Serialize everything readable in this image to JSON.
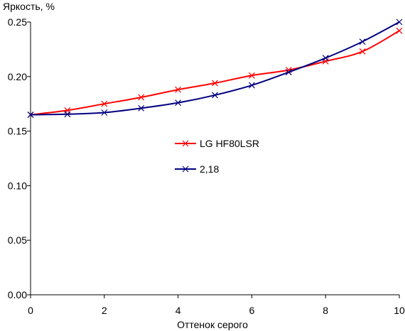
{
  "chart_data": {
    "type": "line",
    "ylabel": "Яркость, %",
    "xlabel": "Оттенок серого",
    "xlim": [
      0,
      10
    ],
    "ylim": [
      0,
      0.25
    ],
    "x_ticks": [
      "0",
      "2",
      "4",
      "6",
      "8",
      "10"
    ],
    "y_ticks": [
      "0.00",
      "0.05",
      "0.10",
      "0.15",
      "0.20",
      "0.25"
    ],
    "grid": false,
    "legend_position": "center",
    "x": [
      0,
      1,
      2,
      3,
      4,
      5,
      6,
      7,
      8,
      9,
      10
    ],
    "series": [
      {
        "name": "LG HF80LSR",
        "color": "#ff0000",
        "marker": "x",
        "values": [
          0.165,
          0.169,
          0.175,
          0.181,
          0.188,
          0.194,
          0.201,
          0.206,
          0.214,
          0.223,
          0.242
        ]
      },
      {
        "name": "2,18",
        "color": "#000080",
        "marker": "x",
        "values": [
          0.165,
          0.1655,
          0.167,
          0.171,
          0.176,
          0.183,
          0.192,
          0.204,
          0.217,
          0.232,
          0.25
        ]
      }
    ]
  }
}
